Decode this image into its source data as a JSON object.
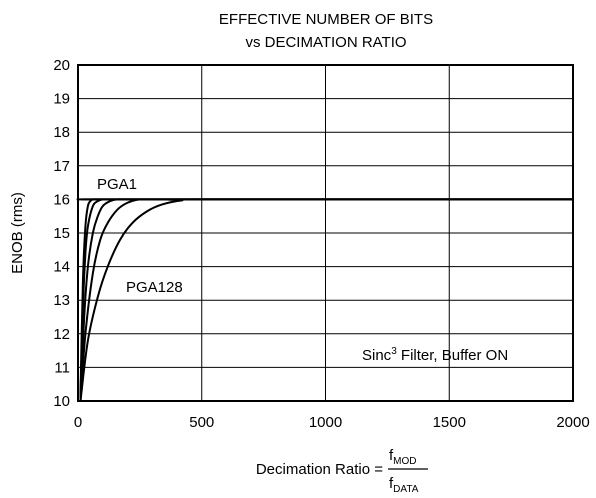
{
  "chart_data": {
    "type": "line",
    "title": "EFFECTIVE NUMBER OF BITS",
    "subtitle": "vs DECIMATION RATIO",
    "xlabel": "Decimation Ratio =",
    "xlabel_fraction": {
      "numerator": "f",
      "numerator_sub": "MOD",
      "denominator": "f",
      "denominator_sub": "DATA"
    },
    "ylabel": "ENOB (rms)",
    "xlim": [
      0,
      2000
    ],
    "ylim": [
      10,
      20
    ],
    "x_ticks": [
      "0",
      "500",
      "1000",
      "1500",
      "2000"
    ],
    "y_ticks": [
      "10",
      "11",
      "12",
      "13",
      "14",
      "15",
      "16",
      "17",
      "18",
      "19",
      "20"
    ],
    "grid": true,
    "legend": "none",
    "annotations": [
      {
        "text": "PGA1",
        "x": 80,
        "y": 16.4
      },
      {
        "text": "PGA128",
        "x": 200,
        "y": 13.5
      },
      {
        "sup_base": "Sinc",
        "sup": "3",
        "text": " Filter, Buffer ON",
        "x": 1150,
        "y": 11.4
      }
    ],
    "series": [
      {
        "x": [
          10,
          20,
          30,
          40,
          50,
          60,
          80,
          100,
          150,
          2000
        ],
        "y": [
          10.2,
          13.6,
          15.2,
          15.8,
          15.95,
          16.0,
          16.0,
          16.0,
          16.0,
          16.0
        ]
      },
      {
        "x": [
          10,
          20,
          30,
          40,
          60,
          80,
          100,
          130,
          160,
          2000
        ],
        "y": [
          10.1,
          12.8,
          14.4,
          15.2,
          15.8,
          15.95,
          16.0,
          16.0,
          16.0,
          16.0
        ]
      },
      {
        "x": [
          10,
          25,
          40,
          60,
          80,
          100,
          130,
          160,
          200,
          2000
        ],
        "y": [
          10.1,
          12.5,
          14.0,
          15.0,
          15.5,
          15.8,
          15.95,
          16.0,
          16.0,
          16.0
        ]
      },
      {
        "x": [
          10,
          30,
          60,
          90,
          120,
          160,
          200,
          250,
          300,
          2000
        ],
        "y": [
          10.0,
          12.0,
          13.8,
          14.8,
          15.3,
          15.7,
          15.9,
          16.0,
          16.0,
          16.0
        ]
      },
      {
        "x": [
          10,
          40,
          80,
          120,
          170,
          220,
          280,
          340,
          420,
          500,
          2000
        ],
        "y": [
          10.0,
          11.8,
          13.1,
          14.0,
          14.8,
          15.3,
          15.65,
          15.85,
          15.97,
          16.0,
          16.0
        ]
      }
    ]
  }
}
